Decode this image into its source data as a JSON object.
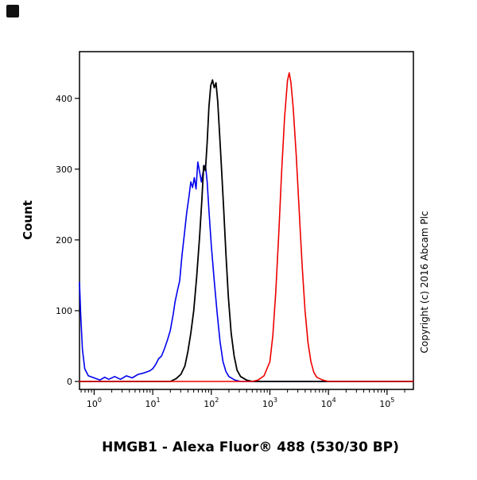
{
  "chart_data": {
    "type": "line",
    "subtype": "flow-cytometry-histogram",
    "title": "HMGB1 - Alexa Fluor® 488 (530/30 BP)",
    "xlabel": "",
    "ylabel": "Count",
    "copyright": "Copyright (c) 2016 Abcam Plc",
    "x_scale": "log10",
    "xlim_log10": [
      -0.25,
      5.45
    ],
    "x_tick_exponents": [
      0,
      1,
      2,
      3,
      4,
      5
    ],
    "ylim": [
      0,
      466
    ],
    "y_ticks": [
      0,
      100,
      200,
      300,
      400
    ],
    "grid": false,
    "legend": "none",
    "colors": {
      "blue": "#0000ee",
      "black": "#000000",
      "red": "#ee0000"
    },
    "series": [
      {
        "name": "blue-histogram",
        "color": "#0000ee",
        "stroke_width": 1.6,
        "points_log10x_count": [
          [
            -0.25,
            140
          ],
          [
            -0.23,
            95
          ],
          [
            -0.2,
            45
          ],
          [
            -0.16,
            18
          ],
          [
            -0.1,
            8
          ],
          [
            0,
            5
          ],
          [
            0.1,
            2
          ],
          [
            0.18,
            6
          ],
          [
            0.25,
            3
          ],
          [
            0.35,
            7
          ],
          [
            0.45,
            3
          ],
          [
            0.55,
            8
          ],
          [
            0.65,
            5
          ],
          [
            0.75,
            10
          ],
          [
            0.85,
            12
          ],
          [
            0.95,
            15
          ],
          [
            1.0,
            18
          ],
          [
            1.05,
            24
          ],
          [
            1.1,
            32
          ],
          [
            1.15,
            36
          ],
          [
            1.2,
            46
          ],
          [
            1.25,
            58
          ],
          [
            1.3,
            72
          ],
          [
            1.35,
            95
          ],
          [
            1.38,
            112
          ],
          [
            1.42,
            128
          ],
          [
            1.46,
            142
          ],
          [
            1.5,
            178
          ],
          [
            1.54,
            208
          ],
          [
            1.58,
            238
          ],
          [
            1.62,
            262
          ],
          [
            1.65,
            282
          ],
          [
            1.68,
            274
          ],
          [
            1.71,
            288
          ],
          [
            1.74,
            272
          ],
          [
            1.77,
            310
          ],
          [
            1.8,
            296
          ],
          [
            1.83,
            282
          ],
          [
            1.86,
            296
          ],
          [
            1.9,
            306
          ],
          [
            1.93,
            282
          ],
          [
            1.96,
            242
          ],
          [
            2.0,
            192
          ],
          [
            2.05,
            142
          ],
          [
            2.1,
            96
          ],
          [
            2.15,
            56
          ],
          [
            2.2,
            28
          ],
          [
            2.25,
            14
          ],
          [
            2.3,
            7
          ],
          [
            2.4,
            2
          ],
          [
            2.5,
            0
          ],
          [
            5.45,
            0
          ]
        ]
      },
      {
        "name": "black-histogram",
        "color": "#000000",
        "stroke_width": 1.8,
        "points_log10x_count": [
          [
            -0.25,
            0
          ],
          [
            1.3,
            0
          ],
          [
            1.4,
            4
          ],
          [
            1.48,
            10
          ],
          [
            1.55,
            22
          ],
          [
            1.6,
            42
          ],
          [
            1.65,
            68
          ],
          [
            1.7,
            100
          ],
          [
            1.75,
            148
          ],
          [
            1.8,
            205
          ],
          [
            1.84,
            258
          ],
          [
            1.87,
            305
          ],
          [
            1.9,
            298
          ],
          [
            1.93,
            338
          ],
          [
            1.96,
            388
          ],
          [
            1.99,
            418
          ],
          [
            2.02,
            426
          ],
          [
            2.05,
            415
          ],
          [
            2.08,
            422
          ],
          [
            2.11,
            395
          ],
          [
            2.14,
            352
          ],
          [
            2.17,
            308
          ],
          [
            2.21,
            245
          ],
          [
            2.25,
            180
          ],
          [
            2.29,
            120
          ],
          [
            2.34,
            68
          ],
          [
            2.39,
            36
          ],
          [
            2.44,
            16
          ],
          [
            2.5,
            7
          ],
          [
            2.6,
            2
          ],
          [
            2.7,
            0
          ],
          [
            5.45,
            0
          ]
        ]
      },
      {
        "name": "red-histogram",
        "color": "#ee0000",
        "stroke_width": 1.6,
        "points_log10x_count": [
          [
            -0.25,
            0
          ],
          [
            2.7,
            0
          ],
          [
            2.8,
            2
          ],
          [
            2.9,
            8
          ],
          [
            3.0,
            28
          ],
          [
            3.05,
            65
          ],
          [
            3.1,
            125
          ],
          [
            3.15,
            205
          ],
          [
            3.2,
            295
          ],
          [
            3.25,
            372
          ],
          [
            3.3,
            425
          ],
          [
            3.33,
            436
          ],
          [
            3.36,
            422
          ],
          [
            3.4,
            385
          ],
          [
            3.45,
            320
          ],
          [
            3.5,
            242
          ],
          [
            3.55,
            165
          ],
          [
            3.6,
            100
          ],
          [
            3.65,
            55
          ],
          [
            3.7,
            28
          ],
          [
            3.75,
            13
          ],
          [
            3.8,
            6
          ],
          [
            3.9,
            2
          ],
          [
            4.0,
            0
          ],
          [
            5.45,
            0
          ]
        ]
      }
    ]
  }
}
